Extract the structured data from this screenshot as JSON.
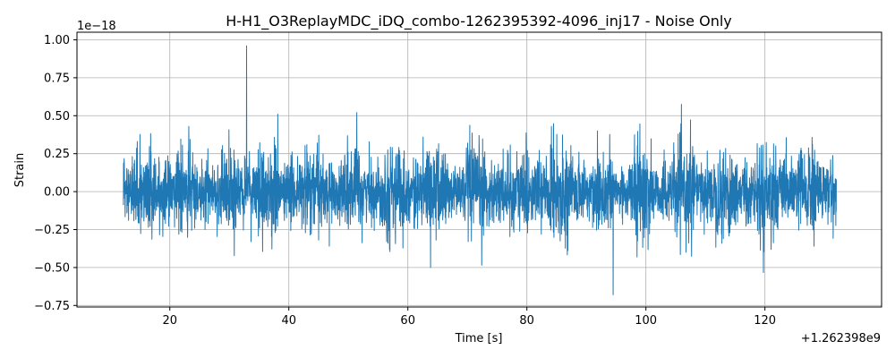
{
  "chart_data": {
    "type": "line",
    "title": "H-H1_O3ReplayMDC_iDQ_combo-1262395392-4096_inj17 - Noise Only",
    "xlabel": "Time [s]",
    "ylabel": "Strain",
    "x_offset_label": "+1.262398e9",
    "y_scale_label": "1e−18",
    "xlim": [
      4.4,
      139.6
    ],
    "ylim": [
      -0.76,
      1.05
    ],
    "x_ticks": [
      20,
      40,
      60,
      80,
      100,
      120
    ],
    "x_tick_labels": [
      "20",
      "40",
      "60",
      "80",
      "100",
      "120"
    ],
    "y_ticks": [
      -0.75,
      -0.5,
      -0.25,
      0.0,
      0.25,
      0.5,
      0.75,
      1.0
    ],
    "y_tick_labels": [
      "−0.75",
      "−0.50",
      "−0.25",
      "0.00",
      "0.25",
      "0.50",
      "0.75",
      "1.00"
    ],
    "grid": true,
    "legend": "none",
    "series": [
      {
        "color": "#1f77b4",
        "x_range": [
          12.2,
          132.0
        ],
        "typical_amplitude": 0.3,
        "peak_max": {
          "x": 32.9,
          "y": 0.96
        },
        "peak_min": {
          "x": 94.5,
          "y": -0.68
        }
      }
    ]
  }
}
